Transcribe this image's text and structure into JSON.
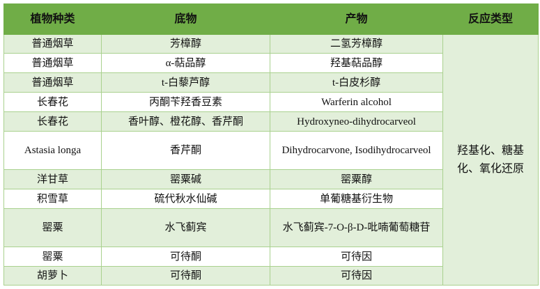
{
  "headers": [
    "植物种类",
    "底物",
    "产物",
    "反应类型"
  ],
  "rows": [
    {
      "plant": "普通烟草",
      "substrate": "芳樟醇",
      "product": "二氢芳樟醇"
    },
    {
      "plant": "普通烟草",
      "substrate": "α-萜品醇",
      "product": "羟基萜品醇"
    },
    {
      "plant": "普通烟草",
      "substrate": "t-白藜芦醇",
      "product": "t-白皮杉醇"
    },
    {
      "plant": "长春花",
      "substrate": "丙酮苄羟香豆素",
      "product": "Warferin alcohol"
    },
    {
      "plant": "长春花",
      "substrate": "香叶醇、橙花醇、香芹酮",
      "product": "Hydroxyneo-dihydrocarveol"
    },
    {
      "plant": "Astasia longa",
      "substrate": "香芹酮",
      "product": "Dihydrocarvone, Isodihydrocarveol"
    },
    {
      "plant": "洋甘草",
      "substrate": "罂粟碱",
      "product": "罂粟醇"
    },
    {
      "plant": "积雪草",
      "substrate": "硫代秋水仙碱",
      "product": "单葡糖基衍生物"
    },
    {
      "plant": "罂粟",
      "substrate": "水飞蓟宾",
      "product": "水飞蓟宾-7-O-β-D-吡喃葡萄糖苷"
    },
    {
      "plant": "罂粟",
      "substrate": "可待酮",
      "product": "可待因"
    },
    {
      "plant": "胡萝卜",
      "substrate": "可待酮",
      "product": "可待因"
    }
  ],
  "reaction_type": "羟基化、糖基化、氧化还原",
  "colors": {
    "header": "#70ad47",
    "band": "#e2efda",
    "border": "#a9d18e"
  }
}
